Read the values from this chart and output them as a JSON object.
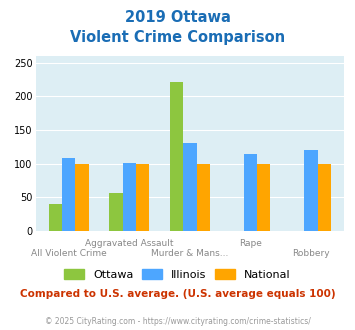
{
  "title_line1": "2019 Ottawa",
  "title_line2": "Violent Crime Comparison",
  "categories": [
    "All Violent Crime",
    "Aggravated Assault",
    "Murder & Mans...",
    "Rape",
    "Robbery"
  ],
  "cat_row": [
    1,
    0,
    1,
    0,
    1
  ],
  "series": {
    "Ottawa": [
      40,
      57,
      222,
      0,
      0
    ],
    "Illinois": [
      108,
      101,
      131,
      114,
      121
    ],
    "National": [
      100,
      100,
      100,
      100,
      100
    ]
  },
  "colors": {
    "Ottawa": "#8dc63f",
    "Illinois": "#4da6ff",
    "National": "#ffa500"
  },
  "ylim": [
    0,
    260
  ],
  "yticks": [
    0,
    50,
    100,
    150,
    200,
    250
  ],
  "note": "Compared to U.S. average. (U.S. average equals 100)",
  "footer": "© 2025 CityRating.com - https://www.cityrating.com/crime-statistics/",
  "bg_color": "#ddeef4",
  "title_color": "#1a6db5",
  "note_color": "#cc3300",
  "footer_color": "#999999",
  "bar_width": 0.22,
  "series_names": [
    "Ottawa",
    "Illinois",
    "National"
  ]
}
